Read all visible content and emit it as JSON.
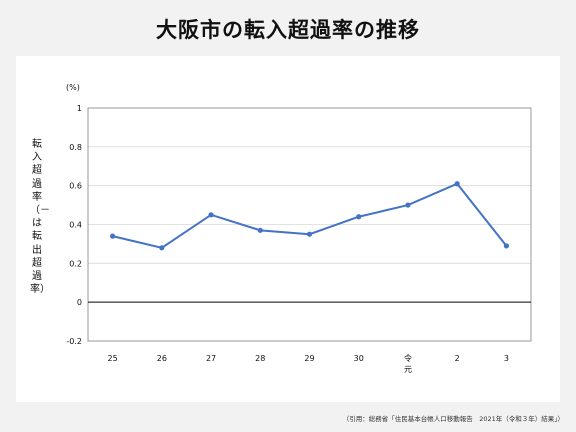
{
  "title": "大阪市の転入超過率の推移",
  "source": "（引用：総務省「住民基本台帳人口移動報告　2021年（令和３年）結果」）",
  "chart_data": {
    "type": "line",
    "ylabel": "転入超過率（－は転出超過率）",
    "yunit": "(%)",
    "ylim": [
      -0.2,
      1
    ],
    "yticks": [
      "1",
      "0.8",
      "0.6",
      "0.4",
      "0.2",
      "0",
      "-0.2"
    ],
    "ytick_values": [
      1,
      0.8,
      0.6,
      0.4,
      0.2,
      0,
      -0.2
    ],
    "categories": [
      "25",
      "26",
      "27",
      "28",
      "29",
      "30",
      "令元",
      "2",
      "3"
    ],
    "category_lines": [
      [
        "25"
      ],
      [
        "26"
      ],
      [
        "27"
      ],
      [
        "28"
      ],
      [
        "29"
      ],
      [
        "30"
      ],
      [
        "令",
        "元"
      ],
      [
        "2"
      ],
      [
        "3"
      ]
    ],
    "series": [
      {
        "values": [
          0.34,
          0.28,
          0.45,
          0.37,
          0.35,
          0.44,
          0.5,
          0.61,
          0.29
        ],
        "color": "#4472C4"
      }
    ],
    "grid": true,
    "gridColor": "#d9d9d9",
    "zeroLineColor": "#000000"
  }
}
